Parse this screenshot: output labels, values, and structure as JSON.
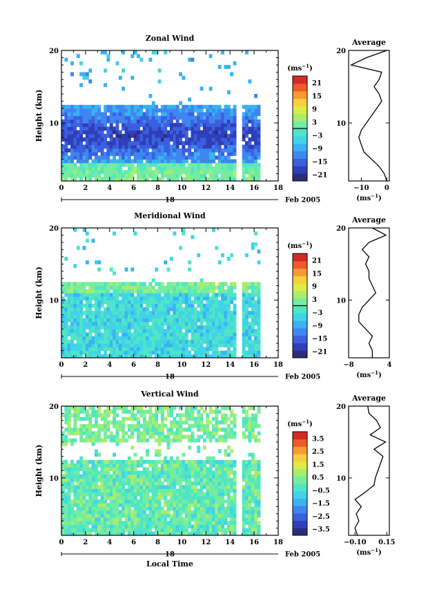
{
  "chart_data": [
    {
      "type": "heatmap",
      "title": "Zonal Wind",
      "xlabel": "",
      "ylabel": "Height (km)",
      "xlim": [
        0,
        18
      ],
      "ylim": [
        2,
        20
      ],
      "x_ticks": [
        "0",
        "2",
        "4",
        "6",
        "8",
        "10",
        "12",
        "14",
        "16",
        "18"
      ],
      "y_ticks": [
        "10",
        "20"
      ],
      "date_marker": "18",
      "date_label": "Feb 2005",
      "colorbar": {
        "unit": "(ms",
        "unit_exp": "−1",
        "unit_close": ")",
        "ticks": [
          "21",
          "15",
          "9",
          "3",
          "−3",
          "−9",
          "−15",
          "−21"
        ],
        "range": [
          -24,
          24
        ],
        "contour_level": 0
      },
      "gaps_hours": [
        [
          14.5,
          14.9
        ],
        [
          16.5,
          17.4
        ]
      ],
      "average_profile": {
        "title": "Average",
        "xlabel": "(ms",
        "xlabel_exp": "−1",
        "xlabel_close": ")",
        "x_ticks": [
          "−10",
          "0"
        ],
        "x_tick_values": [
          -10,
          0
        ],
        "xlim": [
          -15,
          1
        ],
        "y_ticks": [
          "10",
          "20"
        ],
        "height_km": [
          2,
          3,
          4,
          5,
          6,
          7,
          8,
          9,
          10,
          11,
          12,
          13,
          14,
          15,
          16,
          17,
          18,
          19,
          20
        ],
        "value": [
          0,
          -1,
          -3,
          -6,
          -9,
          -10,
          -11,
          -10,
          -8,
          -6,
          -4,
          -2,
          -3,
          -5,
          -3,
          -2,
          -14,
          -8,
          0
        ]
      }
    },
    {
      "type": "heatmap",
      "title": "Meridional Wind",
      "xlabel": "",
      "ylabel": "Height (km)",
      "xlim": [
        0,
        18
      ],
      "ylim": [
        2,
        20
      ],
      "x_ticks": [
        "0",
        "2",
        "4",
        "6",
        "8",
        "10",
        "12",
        "14",
        "16",
        "18"
      ],
      "y_ticks": [
        "10",
        "20"
      ],
      "date_marker": "18",
      "date_label": "Feb 2005",
      "colorbar": {
        "unit": "(ms",
        "unit_exp": "−1",
        "unit_close": ")",
        "ticks": [
          "21",
          "15",
          "9",
          "3",
          "−3",
          "−9",
          "−15",
          "−21"
        ],
        "range": [
          -24,
          24
        ],
        "contour_level": 0
      },
      "gaps_hours": [
        [
          14.5,
          14.9
        ],
        [
          16.5,
          17.4
        ]
      ],
      "average_profile": {
        "title": "Average",
        "xlabel": "(ms",
        "xlabel_exp": "−1",
        "xlabel_close": ")",
        "x_ticks": [
          "−8",
          "4"
        ],
        "x_tick_values": [
          -8,
          4
        ],
        "xlim": [
          -8,
          4
        ],
        "y_ticks": [
          "10",
          "20"
        ],
        "height_km": [
          2,
          3,
          4,
          5,
          6,
          7,
          8,
          9,
          10,
          11,
          12,
          13,
          14,
          15,
          16,
          17,
          18,
          19,
          20
        ],
        "value": [
          -1,
          -1,
          -2,
          -1,
          -3,
          -5,
          -5,
          -4,
          -2,
          0,
          -1,
          -2,
          -2,
          -3,
          -2,
          -4,
          -2,
          3,
          -1
        ]
      }
    },
    {
      "type": "heatmap",
      "title": "Vertical Wind",
      "xlabel": "Local Time",
      "ylabel": "Height (km)",
      "xlim": [
        0,
        18
      ],
      "ylim": [
        2,
        20
      ],
      "x_ticks": [
        "0",
        "2",
        "4",
        "6",
        "8",
        "10",
        "12",
        "14",
        "16",
        "18"
      ],
      "y_ticks": [
        "10",
        "20"
      ],
      "date_marker": "18",
      "date_label": "Feb 2005",
      "colorbar": {
        "unit": "(ms",
        "unit_exp": "−1",
        "unit_close": ")",
        "ticks": [
          "3.5",
          "2.5",
          "1.5",
          "0.5",
          "−0.5",
          "−1.5",
          "−2.5",
          "−3.5"
        ],
        "range": [
          -4,
          4
        ]
      },
      "gaps_hours": [
        [
          14.5,
          14.9
        ],
        [
          16.5,
          17.4
        ]
      ],
      "average_profile": {
        "title": "Average",
        "xlabel": "(ms",
        "xlabel_exp": "−1",
        "xlabel_close": ")",
        "x_ticks": [
          "−0.10",
          "0.15"
        ],
        "x_tick_values": [
          -0.1,
          0.15
        ],
        "xlim": [
          -0.15,
          0.17
        ],
        "y_ticks": [
          "10",
          "20"
        ],
        "height_km": [
          2,
          3,
          4,
          5,
          6,
          7,
          8,
          9,
          10,
          11,
          12,
          13,
          14,
          15,
          16,
          17,
          18,
          19,
          20
        ],
        "value": [
          -0.08,
          -0.1,
          -0.07,
          -0.09,
          -0.05,
          -0.1,
          -0.02,
          0.05,
          0.06,
          0.08,
          0.1,
          0.12,
          0.05,
          0.14,
          0.02,
          0.1,
          0.07,
          0.01,
          0.0
        ]
      }
    }
  ]
}
